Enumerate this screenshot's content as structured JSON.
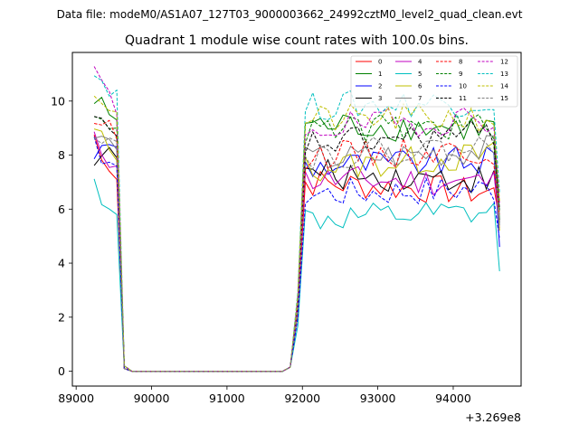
{
  "suptitle": "Data file: modeM0/AS1A07_127T03_9000003662_24992cztM0_level2_quad_clean.evt",
  "chart_data": {
    "type": "line",
    "title": "Quadrant 1 module wise count rates with 100.0s bins.",
    "xlabel": "",
    "ylabel": "",
    "offset_label": "+3.269e8",
    "xlim": [
      88950,
      94900
    ],
    "ylim": [
      -0.55,
      11.8
    ],
    "x_ticks": [
      89000,
      90000,
      91000,
      92000,
      93000,
      94000
    ],
    "x_tick_labels": [
      "89000",
      "90000",
      "91000",
      "92000",
      "93000",
      "94000"
    ],
    "y_ticks": [
      0,
      2,
      4,
      6,
      8,
      10
    ],
    "y_tick_labels": [
      "0",
      "2",
      "4",
      "6",
      "8",
      "10"
    ],
    "grid": false,
    "legend_position": "upper right",
    "x_segments": [
      [
        89239,
        89539
      ],
      [
        89639,
        91739
      ],
      [
        91839,
        94539
      ]
    ],
    "x_end": 94614,
    "series": [
      {
        "name": "0",
        "color": "#ff0000",
        "dash": false,
        "levels": [
          8.7,
          7.1,
          0.1,
          0.0,
          0.0,
          7.0,
          6.6,
          5.6
        ]
      },
      {
        "name": "1",
        "color": "#008000",
        "dash": false,
        "levels": [
          10.0,
          9.3,
          0.2,
          0.0,
          0.0,
          9.1,
          9.0,
          5.6
        ]
      },
      {
        "name": "2",
        "color": "#0000ff",
        "dash": false,
        "levels": [
          8.1,
          8.3,
          0.1,
          0.0,
          0.0,
          7.6,
          7.8,
          4.6
        ]
      },
      {
        "name": "3",
        "color": "#000000",
        "dash": false,
        "levels": [
          8.0,
          7.9,
          0.1,
          0.0,
          0.0,
          7.3,
          7.1,
          5.5
        ]
      },
      {
        "name": "4",
        "color": "#c000c0",
        "dash": false,
        "levels": [
          8.5,
          7.6,
          0.1,
          0.0,
          0.0,
          7.1,
          7.0,
          5.3
        ]
      },
      {
        "name": "5",
        "color": "#00bfbf",
        "dash": false,
        "levels": [
          6.9,
          5.8,
          0.1,
          0.0,
          0.0,
          5.6,
          5.8,
          3.7
        ]
      },
      {
        "name": "6",
        "color": "#bfbf00",
        "dash": false,
        "levels": [
          8.9,
          7.8,
          0.1,
          0.0,
          0.0,
          7.5,
          8.0,
          5.2
        ]
      },
      {
        "name": "7",
        "color": "#808080",
        "dash": false,
        "levels": [
          8.7,
          8.2,
          0.1,
          0.0,
          0.0,
          7.8,
          8.2,
          5.4
        ]
      },
      {
        "name": "8",
        "color": "#ff0000",
        "dash": true,
        "levels": [
          9.4,
          8.6,
          0.1,
          0.0,
          0.0,
          8.0,
          8.2,
          5.8
        ]
      },
      {
        "name": "9",
        "color": "#008000",
        "dash": true,
        "levels": [
          9.8,
          9.0,
          0.2,
          0.0,
          0.0,
          8.9,
          9.1,
          5.9
        ]
      },
      {
        "name": "10",
        "color": "#0000ff",
        "dash": true,
        "levels": [
          8.3,
          7.6,
          0.1,
          0.0,
          0.0,
          6.6,
          6.8,
          4.9
        ]
      },
      {
        "name": "11",
        "color": "#000000",
        "dash": true,
        "levels": [
          9.2,
          8.7,
          0.2,
          0.0,
          0.0,
          8.4,
          8.8,
          6.0
        ]
      },
      {
        "name": "12",
        "color": "#c000c0",
        "dash": true,
        "levels": [
          11.2,
          9.5,
          0.2,
          0.0,
          0.0,
          9.0,
          9.4,
          6.2
        ]
      },
      {
        "name": "13",
        "color": "#00bfbf",
        "dash": true,
        "levels": [
          11.0,
          10.4,
          0.2,
          0.0,
          0.0,
          9.8,
          10.0,
          6.6
        ]
      },
      {
        "name": "14",
        "color": "#bfbf00",
        "dash": true,
        "levels": [
          10.4,
          9.6,
          0.2,
          0.0,
          0.0,
          9.3,
          9.4,
          6.3
        ]
      },
      {
        "name": "15",
        "color": "#808080",
        "dash": true,
        "levels": [
          9.0,
          8.5,
          0.1,
          0.0,
          0.0,
          8.0,
          8.3,
          5.7
        ]
      }
    ]
  }
}
